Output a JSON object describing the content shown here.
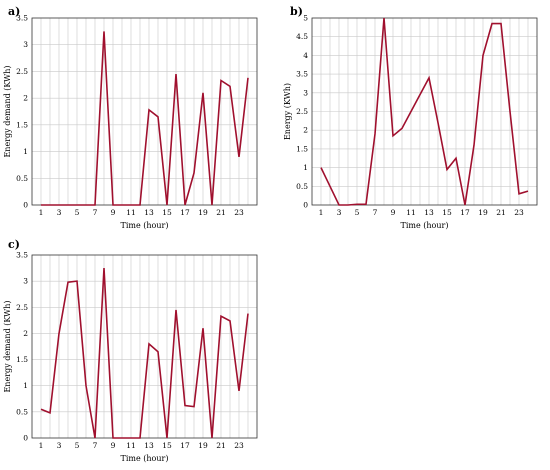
{
  "chart_data": [
    {
      "type": "line",
      "panel_label": "a)",
      "xlabel": "Time (hour)",
      "ylabel": "Energy demand (KWh)",
      "x_tick_labels": [
        "1",
        "3",
        "5",
        "7",
        "9",
        "11",
        "13",
        "15",
        "17",
        "19",
        "21",
        "23"
      ],
      "y_tick_labels": [
        "0",
        "0.5",
        "1",
        "1.5",
        "2",
        "2.5",
        "3",
        "3.5"
      ],
      "xlim": [
        0,
        25
      ],
      "ylim": [
        0,
        3.5
      ],
      "grid": true,
      "color": "#a0102e",
      "x": [
        1,
        2,
        3,
        4,
        5,
        6,
        7,
        8,
        9,
        10,
        11,
        12,
        13,
        14,
        15,
        16,
        17,
        18,
        19,
        20,
        21,
        22,
        23,
        24
      ],
      "y": [
        0,
        0,
        0,
        0,
        0,
        0,
        0,
        3.25,
        0,
        0,
        0,
        0,
        1.78,
        1.65,
        0,
        2.45,
        0,
        0.6,
        2.1,
        0,
        2.33,
        2.22,
        0.9,
        2.38
      ]
    },
    {
      "type": "line",
      "panel_label": "b)",
      "xlabel": "Time (hour)",
      "ylabel": "Energy (KWh)",
      "x_tick_labels": [
        "1",
        "3",
        "5",
        "7",
        "9",
        "11",
        "13",
        "15",
        "17",
        "19",
        "21",
        "23"
      ],
      "y_tick_labels": [
        "0",
        "0.5",
        "1",
        "1.5",
        "2",
        "2.5",
        "3",
        "3.5",
        "4",
        "4.5",
        "5"
      ],
      "xlim": [
        0,
        25
      ],
      "ylim": [
        0,
        5
      ],
      "grid": true,
      "color": "#a0102e",
      "x": [
        1,
        2,
        3,
        4,
        5,
        6,
        7,
        8,
        9,
        10,
        11,
        12,
        13,
        14,
        15,
        16,
        17,
        18,
        19,
        20,
        21,
        22,
        23,
        24
      ],
      "y": [
        1,
        0.5,
        0,
        0,
        0.02,
        0.02,
        1.9,
        5,
        1.85,
        2.05,
        2.5,
        2.95,
        3.4,
        2.2,
        0.95,
        1.25,
        0,
        1.6,
        4,
        4.85,
        4.85,
        2.5,
        0.3,
        0.37
      ]
    },
    {
      "type": "line",
      "panel_label": "c)",
      "xlabel": "Time (hour)",
      "ylabel": "Energy demand (KWh)",
      "x_tick_labels": [
        "1",
        "3",
        "5",
        "7",
        "9",
        "11",
        "13",
        "15",
        "17",
        "19",
        "21",
        "23"
      ],
      "y_tick_labels": [
        "0",
        "0.5",
        "1",
        "1.5",
        "2",
        "2.5",
        "3",
        "3.5"
      ],
      "xlim": [
        0,
        25
      ],
      "ylim": [
        0,
        3.5
      ],
      "grid": true,
      "color": "#a0102e",
      "x": [
        1,
        2,
        3,
        4,
        5,
        6,
        7,
        8,
        9,
        10,
        11,
        12,
        13,
        14,
        15,
        16,
        17,
        18,
        19,
        20,
        21,
        22,
        23,
        24
      ],
      "y": [
        0.55,
        0.48,
        2,
        2.98,
        3,
        1,
        0,
        3.25,
        0,
        0,
        0,
        0,
        1.8,
        1.65,
        0,
        2.45,
        0.62,
        0.6,
        2.1,
        0,
        2.33,
        2.24,
        0.9,
        2.38
      ]
    }
  ]
}
